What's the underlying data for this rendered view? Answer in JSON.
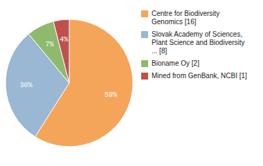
{
  "chart_data": {
    "type": "pie",
    "labels": [
      "Centre for Biodiversity\nGenomics [16]",
      "Slovak Academy of Sciences,\nPlant Science and Biodiversity\n... [8]",
      "Bioname Oy [2]",
      "Mined from GenBank, NCBI [1]"
    ],
    "values": [
      59,
      30,
      7,
      4
    ],
    "value_labels": [
      "59%",
      "30%",
      "7%",
      "4%"
    ],
    "colors": [
      "#f5a55a",
      "#9ab7d3",
      "#8fba6e",
      "#c0504d"
    ],
    "data_labels": true
  }
}
